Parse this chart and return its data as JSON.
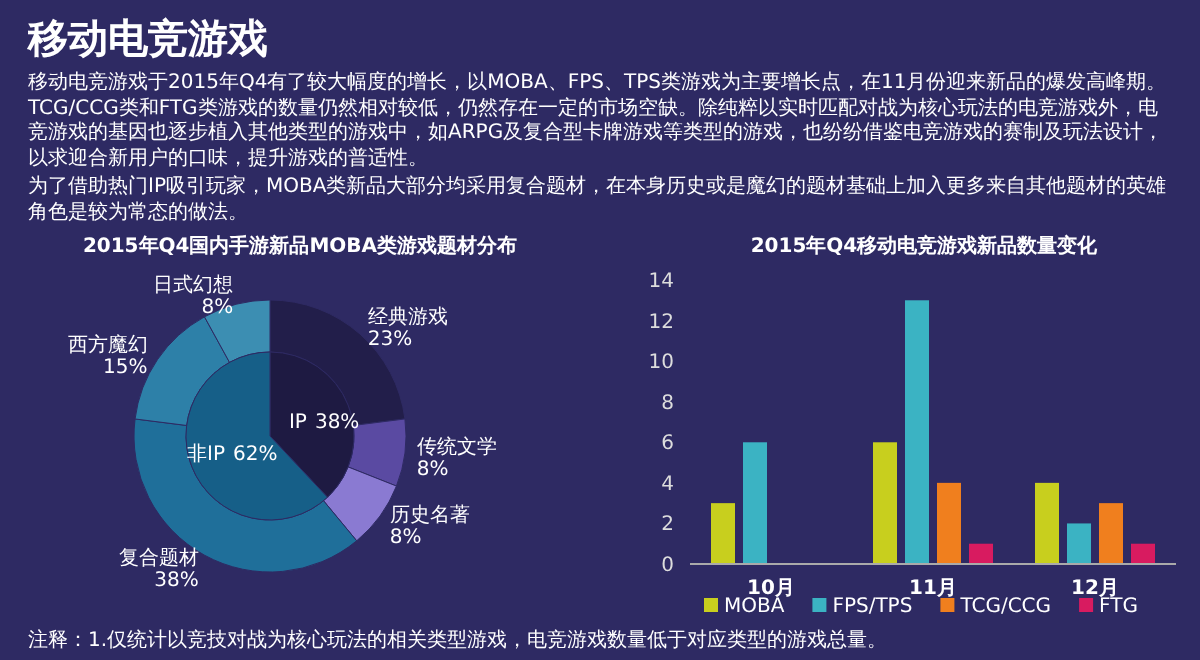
{
  "chart_data": [
    {
      "type": "other",
      "title": "移动电竞游戏",
      "annotations": [
        "移动电竞游戏于2015年Q4有了较大幅度的增长，以MOBA、FPS、TPS类游戏为主要增长点，在11月份迎来新品的爆发高峰期。TCG/CCG类和FTG类游戏的数量仍然相对较低，仍然存在一定的市场空缺。除纯粹以实时匹配对战为核心玩法的电竞游戏外，电竞游戏的基因也逐步植入其他类型的游戏中，如ARPG及复合型卡牌游戏等类型的游戏，也纷纷借鉴电竞游戏的赛制及玩法设计，以求迎合新用户的口味，提升游戏的普适性。",
        "为了借助热门IP吸引玩家，MOBA类新品大部分均采用复合题材，在本身历史或是魔幻的题材基础上加入更多来自其他题材的英雄角色是较为常态的做法。",
        "注释：1.仅统计以竞技对战为核心玩法的相关类型游戏，电竞游戏数量低于对应类型的游戏总量。"
      ]
    },
    {
      "type": "donut",
      "title": "2015年Q4国内手游新品MOBA类游戏题材分布",
      "categories": [
        "经典游戏",
        "传统文学",
        "历史名著",
        "复合题材",
        "西方魔幻",
        "日式幻想"
      ],
      "values": [
        23,
        8,
        8,
        38,
        15,
        8
      ],
      "value_labels": [
        "23%",
        "8%",
        "8%",
        "38%",
        "15%",
        "8%"
      ],
      "colors": [
        "#221e4a",
        "#5a4aa2",
        "#8a7ad2",
        "#1f6f9a",
        "#2d80a8",
        "#3c8eb2"
      ]
    },
    {
      "type": "pie",
      "categories": [
        "IP",
        "非IP"
      ],
      "values": [
        38,
        62
      ],
      "value_labels": [
        "38%",
        "62%"
      ],
      "colors": [
        "#1e1a42",
        "#165f88"
      ]
    },
    {
      "type": "bar",
      "title": "2015年Q4移动电竞游戏新品数量变化",
      "categories": [
        "10月",
        "11月",
        "12月"
      ],
      "ylim": [
        0,
        14
      ],
      "yticks": [
        0,
        2,
        4,
        6,
        8,
        10,
        12,
        14
      ],
      "grid": false,
      "legend": "bottom",
      "series": [
        {
          "name": "MOBA",
          "color": "#c8cf1e",
          "values": [
            3,
            6,
            4
          ]
        },
        {
          "name": "FPS/TPS",
          "color": "#3bb3c3",
          "values": [
            6,
            13,
            2
          ]
        },
        {
          "name": "TCG/CCG",
          "color": "#f07f1e",
          "values": [
            0,
            4,
            3
          ]
        },
        {
          "name": "FTG",
          "color": "#d81b60",
          "values": [
            0,
            1,
            1
          ]
        }
      ]
    }
  ]
}
